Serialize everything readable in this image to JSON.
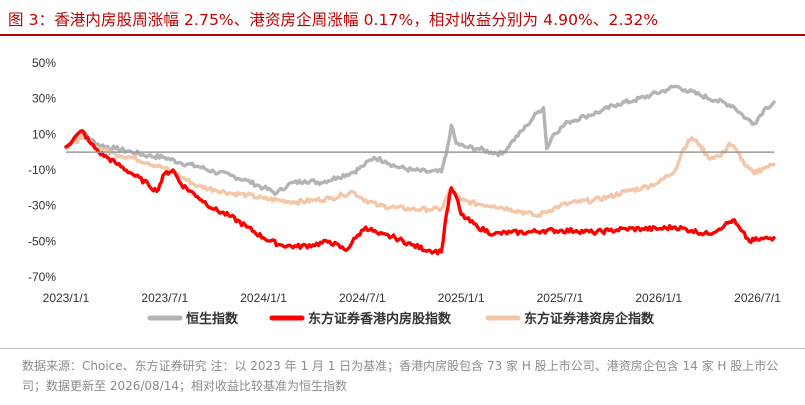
{
  "title": "图 3：香港内房股周涨幅 2.75%、港资房企周涨幅 0.17%，相对收益分别为 4.90%、2.32%",
  "note": "数据来源：Choice、东方证券研究  注：以 2023 年 1 月 1 日为基准；香港内房股包含 73 家 H 股上市公司、港资房企包含 14 家 H 股上市公司；数据更新至 2026/08/14；相对收益比较基准为恒生指数",
  "colors": {
    "title": "#c00000",
    "hsi": "#b4b4b4",
    "hk_mainland": "#ff0000",
    "hk_developers": "#f4c7a8"
  },
  "chart_data": {
    "type": "line",
    "ylim": [
      -70,
      50
    ],
    "ytick_values": [
      50,
      30,
      10,
      -10,
      -30,
      -50,
      -70
    ],
    "ytick_labels": [
      "50%",
      "30%",
      "10%",
      "-10%",
      "-30%",
      "-50%",
      "-70%"
    ],
    "xlim": [
      0,
      43
    ],
    "xtick_values": [
      0,
      6,
      12,
      18,
      24,
      30,
      36,
      42
    ],
    "xtick_labels": [
      "2023/1/1",
      "2023/7/1",
      "2024/1/1",
      "2024/7/1",
      "2025/1/1",
      "2025/7/1",
      "2026/1/1",
      "2026/7/1"
    ],
    "legend_position": "bottom",
    "series": [
      {
        "name": "恒生指数",
        "points": [
          [
            0,
            3
          ],
          [
            0.4,
            6
          ],
          [
            0.8,
            8
          ],
          [
            1.1,
            11
          ],
          [
            1.5,
            7
          ],
          [
            2,
            4
          ],
          [
            3,
            2
          ],
          [
            4,
            0
          ],
          [
            5,
            -2
          ],
          [
            6,
            -3
          ],
          [
            7,
            -6
          ],
          [
            8,
            -8
          ],
          [
            9,
            -11
          ],
          [
            10,
            -13
          ],
          [
            11,
            -16
          ],
          [
            12,
            -20
          ],
          [
            12.8,
            -23
          ],
          [
            13.5,
            -18
          ],
          [
            14.5,
            -16
          ],
          [
            15.5,
            -17
          ],
          [
            16.5,
            -14
          ],
          [
            17.5,
            -11
          ],
          [
            18,
            -8
          ],
          [
            18.7,
            -3
          ],
          [
            19.4,
            -5
          ],
          [
            20,
            -8
          ],
          [
            21,
            -10
          ],
          [
            22,
            -11
          ],
          [
            22.8,
            -11
          ],
          [
            23.1,
            -1
          ],
          [
            23.4,
            15
          ],
          [
            23.7,
            5
          ],
          [
            24.2,
            3
          ],
          [
            25,
            2
          ],
          [
            25.8,
            0
          ],
          [
            26.5,
            -1
          ],
          [
            27,
            5
          ],
          [
            28,
            15
          ],
          [
            28.6,
            22
          ],
          [
            29,
            25
          ],
          [
            29.2,
            2
          ],
          [
            29.6,
            10
          ],
          [
            30.5,
            17
          ],
          [
            31.5,
            20
          ],
          [
            32.5,
            23
          ],
          [
            33.5,
            27
          ],
          [
            34.5,
            29
          ],
          [
            35.5,
            32
          ],
          [
            36.5,
            35
          ],
          [
            37,
            37
          ],
          [
            37.6,
            35
          ],
          [
            38.5,
            32
          ],
          [
            39.5,
            29
          ],
          [
            40.5,
            26
          ],
          [
            41.3,
            19
          ],
          [
            41.8,
            16
          ],
          [
            42.4,
            24
          ],
          [
            43,
            28
          ]
        ]
      },
      {
        "name": "东方证券香港内房股指数",
        "points": [
          [
            0,
            3
          ],
          [
            0.5,
            8
          ],
          [
            1,
            12
          ],
          [
            1.4,
            6
          ],
          [
            2,
            0
          ],
          [
            2.5,
            -3
          ],
          [
            3,
            -6
          ],
          [
            4,
            -12
          ],
          [
            5,
            -18
          ],
          [
            5.5,
            -22
          ],
          [
            6,
            -12
          ],
          [
            6.5,
            -10
          ],
          [
            7,
            -18
          ],
          [
            8,
            -25
          ],
          [
            9,
            -32
          ],
          [
            10,
            -36
          ],
          [
            11,
            -42
          ],
          [
            12,
            -48
          ],
          [
            13,
            -52
          ],
          [
            14,
            -53
          ],
          [
            15,
            -52
          ],
          [
            16,
            -50
          ],
          [
            17,
            -55
          ],
          [
            17.6,
            -48
          ],
          [
            18.2,
            -42
          ],
          [
            19,
            -46
          ],
          [
            20,
            -48
          ],
          [
            21,
            -52
          ],
          [
            22,
            -55
          ],
          [
            22.8,
            -56
          ],
          [
            23.1,
            -35
          ],
          [
            23.4,
            -20
          ],
          [
            23.7,
            -25
          ],
          [
            24,
            -35
          ],
          [
            25,
            -42
          ],
          [
            26,
            -46
          ],
          [
            27,
            -45
          ],
          [
            28,
            -45
          ],
          [
            29,
            -44
          ],
          [
            30,
            -44
          ],
          [
            31,
            -44
          ],
          [
            32,
            -45
          ],
          [
            33,
            -44
          ],
          [
            34,
            -43
          ],
          [
            35,
            -43
          ],
          [
            36,
            -43
          ],
          [
            37,
            -42
          ],
          [
            38,
            -44
          ],
          [
            39,
            -46
          ],
          [
            40,
            -41
          ],
          [
            40.5,
            -38
          ],
          [
            41,
            -44
          ],
          [
            41.5,
            -50
          ],
          [
            42,
            -49
          ],
          [
            43,
            -48
          ]
        ]
      },
      {
        "name": "东方证券港资房企指数",
        "points": [
          [
            0,
            2
          ],
          [
            0.5,
            6
          ],
          [
            1,
            8
          ],
          [
            1.5,
            5
          ],
          [
            2,
            2
          ],
          [
            3,
            -1
          ],
          [
            4,
            -3
          ],
          [
            5,
            -6
          ],
          [
            6,
            -9
          ],
          [
            7,
            -14
          ],
          [
            8,
            -19
          ],
          [
            9,
            -21
          ],
          [
            10,
            -23
          ],
          [
            11,
            -24
          ],
          [
            12,
            -26
          ],
          [
            13,
            -27
          ],
          [
            14,
            -28
          ],
          [
            15,
            -27
          ],
          [
            16,
            -26
          ],
          [
            16.8,
            -24
          ],
          [
            17.4,
            -22
          ],
          [
            18,
            -26
          ],
          [
            19,
            -30
          ],
          [
            20,
            -31
          ],
          [
            21,
            -32
          ],
          [
            22,
            -32
          ],
          [
            22.8,
            -32
          ],
          [
            23.1,
            -26
          ],
          [
            23.4,
            -20
          ],
          [
            23.7,
            -24
          ],
          [
            24,
            -27
          ],
          [
            25,
            -29
          ],
          [
            26,
            -30
          ],
          [
            27,
            -32
          ],
          [
            28,
            -34
          ],
          [
            28.6,
            -36
          ],
          [
            29,
            -34
          ],
          [
            30,
            -30
          ],
          [
            31,
            -28
          ],
          [
            32,
            -27
          ],
          [
            33,
            -25
          ],
          [
            34,
            -22
          ],
          [
            35,
            -20
          ],
          [
            36,
            -17
          ],
          [
            37,
            -10
          ],
          [
            37.5,
            2
          ],
          [
            38,
            8
          ],
          [
            38.5,
            4
          ],
          [
            39,
            -3
          ],
          [
            39.8,
            -2
          ],
          [
            40.3,
            5
          ],
          [
            40.8,
            0
          ],
          [
            41.3,
            -8
          ],
          [
            41.8,
            -12
          ],
          [
            42.3,
            -9
          ],
          [
            43,
            -7
          ]
        ]
      }
    ]
  }
}
